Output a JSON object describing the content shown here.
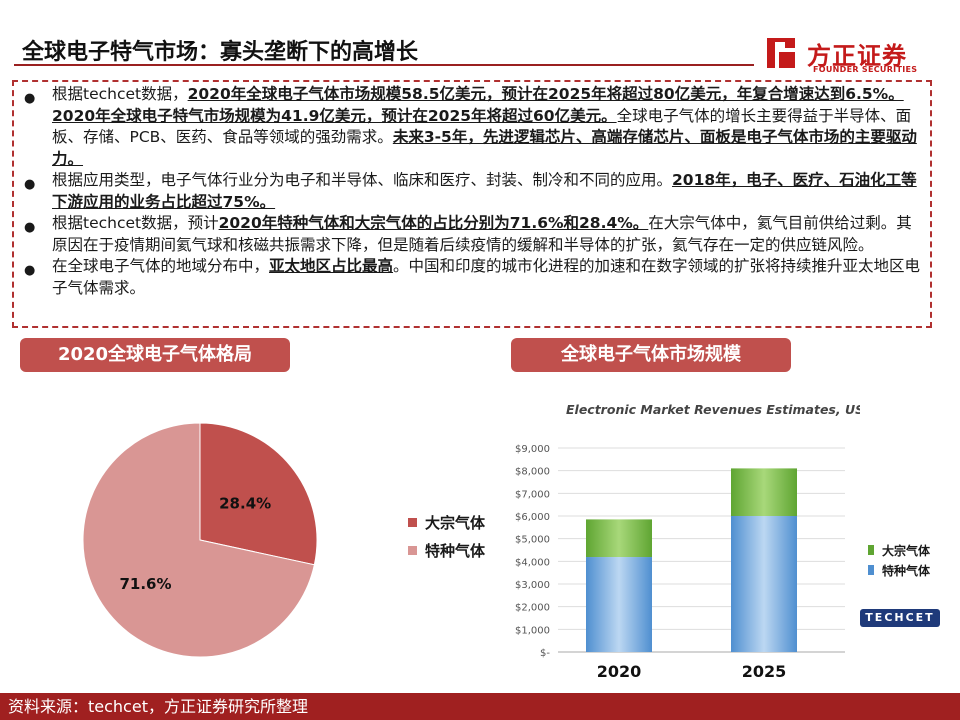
{
  "header": {
    "title": "全球电子特气市场：寡头垄断下的高增长",
    "logo_cn": "方正证券",
    "logo_en": "FOUNDER SECURITIES"
  },
  "bullets": [
    {
      "segments": [
        {
          "t": "根据techcet数据，",
          "b": false
        },
        {
          "t": "2020年全球电子气体市场规模58.5亿美元，预计在2025年将超过80亿美元，年复合增速达到6.5%。2020年全球电子特气市场规模为41.9亿美元，预计在2025年将超过60亿美元。",
          "b": true
        },
        {
          "t": "全球电子气体的增长主要得益于半导体、面板、存储、PCB、医药、食品等领域的强劲需求。",
          "b": false
        },
        {
          "t": "未来3-5年，先进逻辑芯片、高端存储芯片、面板是电子气体市场的主要驱动力。",
          "b": true
        }
      ]
    },
    {
      "segments": [
        {
          "t": "根据应用类型，电子气体行业分为电子和半导体、临床和医疗、封装、制冷和不同的应用。",
          "b": false
        },
        {
          "t": "2018年，电子、医疗、石油化工等下游应用的业务占比超过75%。",
          "b": true
        }
      ]
    },
    {
      "segments": [
        {
          "t": "根据techcet数据，预计",
          "b": false
        },
        {
          "t": "2020年特种气体和大宗气体的占比分别为71.6%和28.4%。",
          "b": true
        },
        {
          "t": "在大宗气体中，氦气目前供给过剩。其原因在于疫情期间氦气球和核磁共振需求下降，但是随着后续疫情的缓解和半导体的扩张，氦气存在一定的供应链风险。",
          "b": false
        }
      ]
    },
    {
      "segments": [
        {
          "t": "在全球电子气体的地域分布中，",
          "b": false
        },
        {
          "t": "亚太地区占比最高",
          "b": true
        },
        {
          "t": "。中国和印度的城市化进程的加速和在数字领域的扩张将持续推升亚太地区电子气体需求。",
          "b": false
        }
      ]
    }
  ],
  "left_section": {
    "title": "2020全球电子气体格局"
  },
  "right_section": {
    "title": "全球电子气体市场规模"
  },
  "colors": {
    "bulk": "#c0504d",
    "specialty": "#d99694",
    "bar_green": "#5fa532",
    "bar_blue": "#4f8fd0",
    "accent": "#a02020"
  },
  "chart_data": [
    {
      "type": "pie",
      "title": "",
      "slices": [
        {
          "name": "大宗气体",
          "value": 28.4,
          "label": "28.4%"
        },
        {
          "name": "特种气体",
          "value": 71.6,
          "label": "71.6%"
        }
      ],
      "legend": "right"
    },
    {
      "type": "bar",
      "stacked": true,
      "title": "Electronic Market Revenues Estimates, US$ M",
      "categories": [
        "2020",
        "2025"
      ],
      "series": [
        {
          "name": "特种气体",
          "values": [
            4190,
            6000
          ]
        },
        {
          "name": "大宗气体",
          "values": [
            1660,
            2100
          ]
        }
      ],
      "y_ticks": [
        "$-",
        "$1,000",
        "$2,000",
        "$3,000",
        "$4,000",
        "$5,000",
        "$6,000",
        "$7,000",
        "$8,000",
        "$9,000"
      ],
      "ylim": [
        0,
        9000
      ],
      "grid": true,
      "legend": "right"
    }
  ],
  "source": "资料来源：techcet，方正证券研究所整理",
  "watermark": "TECHCET"
}
